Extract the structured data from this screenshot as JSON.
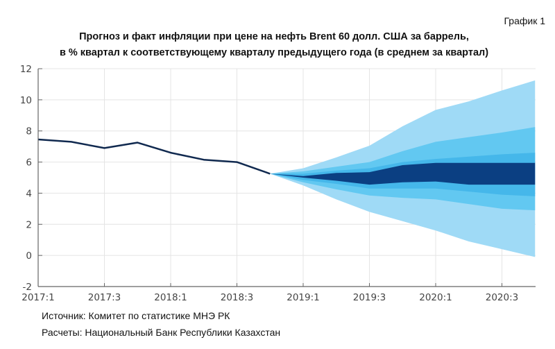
{
  "graph_label": "График 1",
  "chart_data": {
    "type": "area",
    "title": "Прогноз и факт инфляции при цене на нефть Brent 60 долл. США за баррель,",
    "subtitle": "в % квартал к соответствующему кварталу предыдущего года (в среднем за квартал)",
    "xlabel": "",
    "ylabel": "",
    "ylim": [
      -2,
      12
    ],
    "yticks": [
      -2,
      0,
      2,
      4,
      6,
      8,
      10,
      12
    ],
    "xticks": [
      "2017:1",
      "2017:3",
      "2018:1",
      "2018:3",
      "2019:1",
      "2019:3",
      "2020:1",
      "2020:3"
    ],
    "grid": true,
    "history": {
      "x": [
        "2017:1",
        "2017:2",
        "2017:3",
        "2017:4",
        "2018:1",
        "2018:2",
        "2018:3",
        "2018:4"
      ],
      "values": [
        7.45,
        7.3,
        6.9,
        7.25,
        6.6,
        6.15,
        6.0,
        5.25
      ]
    },
    "fan": {
      "x": [
        "2018:4",
        "2019:1",
        "2019:2",
        "2019:3",
        "2019:4",
        "2020:1",
        "2020:2",
        "2020:3",
        "2020:4"
      ],
      "bands": [
        {
          "lower": [
            5.25,
            4.5,
            3.6,
            2.8,
            2.2,
            1.6,
            0.9,
            0.4,
            -0.1
          ],
          "upper": [
            5.25,
            5.6,
            6.3,
            7.05,
            8.3,
            9.35,
            9.9,
            10.6,
            11.25
          ],
          "color": "#9fdaf6"
        },
        {
          "lower": [
            5.25,
            4.7,
            4.25,
            3.85,
            3.7,
            3.6,
            3.3,
            3.0,
            2.9
          ],
          "upper": [
            5.25,
            5.4,
            5.7,
            6.0,
            6.7,
            7.3,
            7.6,
            7.9,
            8.25
          ],
          "color": "#62c8f1"
        },
        {
          "lower": [
            5.25,
            4.85,
            4.6,
            4.3,
            4.3,
            4.3,
            4.1,
            3.9,
            3.8
          ],
          "upper": [
            5.25,
            5.25,
            5.45,
            5.6,
            6.0,
            6.2,
            6.35,
            6.5,
            6.6
          ],
          "color": "#45b7ea"
        },
        {
          "lower": [
            5.25,
            5.0,
            4.8,
            4.55,
            4.7,
            4.75,
            4.55,
            4.55,
            4.55
          ],
          "upper": [
            5.25,
            5.1,
            5.3,
            5.35,
            5.8,
            5.95,
            5.95,
            5.95,
            5.95
          ],
          "color": "#0b3f82"
        }
      ]
    },
    "line_color": "#10294f"
  },
  "notes": {
    "source": "Источник: Комитет по статистике МНЭ РК",
    "calc": "Расчеты: Национальный Банк Республики Казахстан"
  }
}
